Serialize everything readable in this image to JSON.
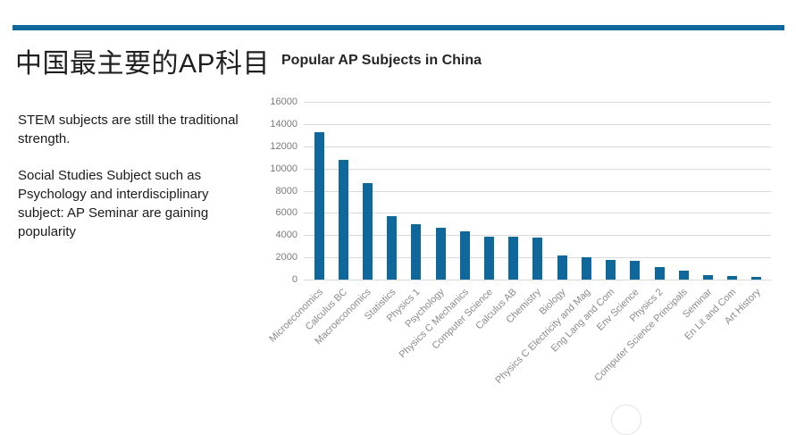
{
  "slide": {
    "title": "中国最主要的AP科目",
    "body_paragraph_1": "STEM subjects are still the traditional strength.",
    "body_paragraph_2": "Social Studies Subject such as Psychology and interdisciplinary subject: AP Seminar are gaining popularity",
    "accent_color": "#0e689c"
  },
  "chart_data": {
    "type": "bar",
    "title": "Popular AP Subjects in China",
    "categories": [
      "Microeconomics",
      "Calculus BC",
      "Macroeconomics",
      "Statistics",
      "Physics 1",
      "Psychology",
      "Physics C Mechanics",
      "Computer Science",
      "Calculus AB",
      "Chemistry",
      "Biology",
      "Physics C Electricity and Mag",
      "Eng Lang and Com",
      "Env Science",
      "Physics 2",
      "Computer Science Principals",
      "Seminar",
      "En Lit and Com",
      "Art History"
    ],
    "values": [
      13300,
      10750,
      8650,
      5700,
      5000,
      4700,
      4350,
      3900,
      3850,
      3750,
      2150,
      2050,
      1750,
      1700,
      1100,
      800,
      400,
      350,
      250
    ],
    "xlabel": "",
    "ylabel": "",
    "ylim": [
      0,
      16000
    ],
    "ytick_step": 2000,
    "ytick_labels": [
      "0",
      "2000",
      "4000",
      "6000",
      "8000",
      "10000",
      "12000",
      "14000",
      "16000"
    ],
    "grid": true,
    "legend": false,
    "bar_color": "#0e689c",
    "gridline_color": "#d9d9d9"
  }
}
